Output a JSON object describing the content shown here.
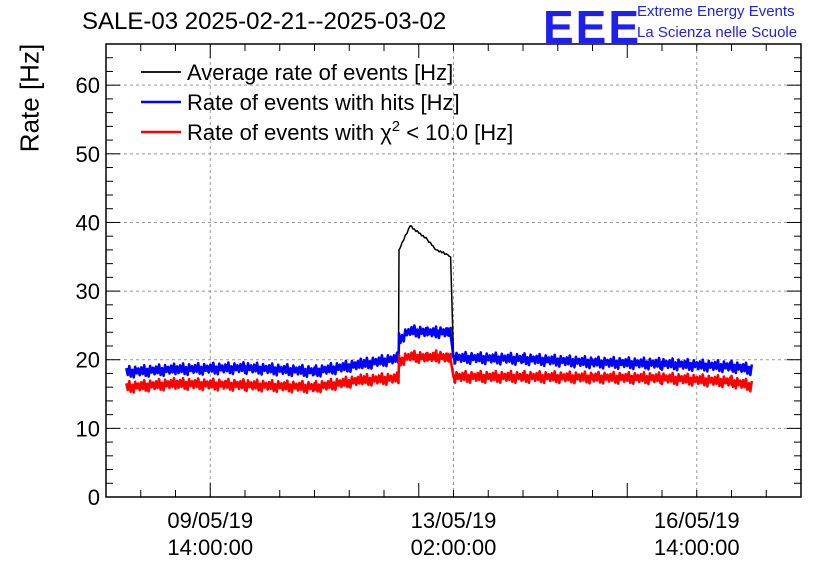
{
  "header": {
    "title": "SALE-03 2025-02-21--2025-03-02",
    "logo_text": "EEE",
    "logo_line1": "Extreme Energy Events",
    "logo_line2": "La Scienza nelle Scuole",
    "logo_color": "#2020ee"
  },
  "chart_data": {
    "type": "line",
    "ylabel": "Rate [Hz]",
    "xlabel": "",
    "ylim": [
      0,
      66
    ],
    "yticks": [
      0,
      10,
      20,
      30,
      40,
      50,
      60
    ],
    "grid": true,
    "legend_position": "top-left",
    "x_range": [
      "08/05/19 02:00:00",
      "18/05/19 02:00:00"
    ],
    "x_tick_labels": [
      {
        "x": "09/05/19 14:00:00",
        "line1": "09/05/19",
        "line2": "14:00:00"
      },
      {
        "x": "13/05/19 02:00:00",
        "line1": "13/05/19",
        "line2": "02:00:00"
      },
      {
        "x": "16/05/19 14:00:00",
        "line1": "16/05/19",
        "line2": "14:00:00"
      }
    ],
    "series": [
      {
        "name": "Average rate of events [Hz]",
        "color": "#000000",
        "x": [
          "08/05/19 09:00",
          "09/05/19 02:00",
          "10/05/19 02:00",
          "11/05/19 02:00",
          "11/05/19 18:00",
          "12/05/19 07:00",
          "12/05/19 07:10",
          "12/05/19 11:00",
          "12/05/19 17:00",
          "12/05/19 20:00",
          "13/05/19 00:00",
          "13/05/19 01:00",
          "13/05/19 02:00",
          "14/05/19 02:00",
          "15/05/19 02:00",
          "16/05/19 02:00",
          "17/05/19 02:00",
          "17/05/19 09:00"
        ],
        "values": [
          18.3,
          18.6,
          18.8,
          18.4,
          19.5,
          20.5,
          36.0,
          39.5,
          37.5,
          36.0,
          35.3,
          35.0,
          20.5,
          20.3,
          19.9,
          19.6,
          19.3,
          18.8
        ]
      },
      {
        "name": "Rate of events with hits [Hz]",
        "color": "#0000ff",
        "x": [
          "08/05/19 09:00",
          "09/05/19 02:00",
          "10/05/19 02:00",
          "11/05/19 02:00",
          "11/05/19 18:00",
          "12/05/19 07:00",
          "12/05/19 07:10",
          "12/05/19 11:00",
          "12/05/19 17:00",
          "12/05/19 20:00",
          "13/05/19 00:00",
          "13/05/19 01:00",
          "13/05/19 02:00",
          "14/05/19 02:00",
          "15/05/19 02:00",
          "16/05/19 02:00",
          "17/05/19 02:00",
          "17/05/19 09:00"
        ],
        "values": [
          18.2,
          18.6,
          18.8,
          18.3,
          19.3,
          20.2,
          23.0,
          24.2,
          24.0,
          24.0,
          24.0,
          23.8,
          20.3,
          20.1,
          19.6,
          19.4,
          19.0,
          18.6
        ]
      },
      {
        "name": "Rate of events with χ² < 10.0 [Hz]",
        "legend_label_main": "Rate of events with χ",
        "legend_label_sup": "2",
        "legend_label_rest": " < 10.0 [Hz]",
        "color": "#ff0000",
        "x": [
          "08/05/19 09:00",
          "09/05/19 02:00",
          "10/05/19 02:00",
          "11/05/19 02:00",
          "11/05/19 18:00",
          "12/05/19 07:00",
          "12/05/19 07:10",
          "12/05/19 11:00",
          "12/05/19 17:00",
          "12/05/19 20:00",
          "13/05/19 00:00",
          "13/05/19 01:00",
          "13/05/19 02:00",
          "14/05/19 02:00",
          "15/05/19 02:00",
          "16/05/19 02:00",
          "17/05/19 02:00",
          "17/05/19 09:00"
        ],
        "values": [
          16.0,
          16.5,
          16.3,
          16.0,
          17.0,
          17.3,
          19.8,
          20.5,
          20.3,
          20.5,
          20.3,
          20.0,
          17.5,
          17.5,
          17.4,
          17.3,
          16.8,
          16.2
        ]
      }
    ]
  }
}
